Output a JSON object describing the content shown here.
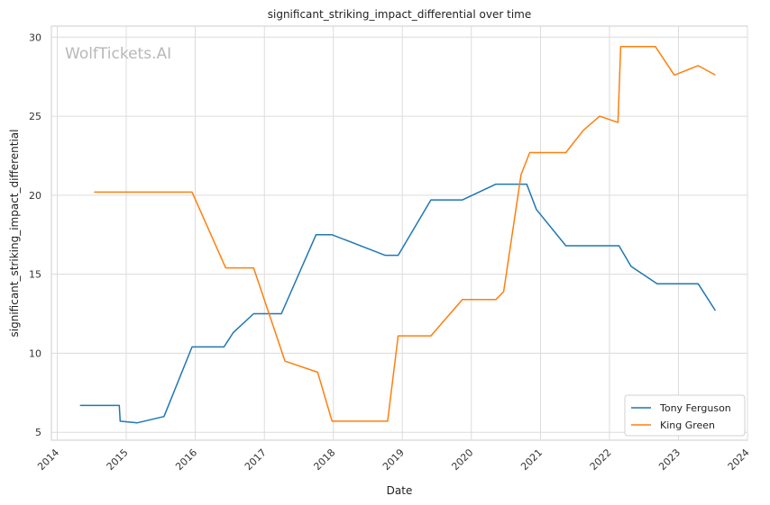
{
  "chart_data": {
    "type": "line",
    "title": "significant_striking_impact_differential over time",
    "xlabel": "Date",
    "ylabel": "significant_striking_impact_differential",
    "watermark": "WolfTickets.AI",
    "x_ticks": [
      "2014",
      "2015",
      "2016",
      "2017",
      "2018",
      "2019",
      "2020",
      "2021",
      "2022",
      "2023",
      "2024"
    ],
    "y_ticks": [
      5,
      10,
      15,
      20,
      25,
      30
    ],
    "xlim": [
      "2013-12-01",
      "2024-01-01"
    ],
    "ylim": [
      4.5,
      30.7
    ],
    "grid": true,
    "legend": "lower-right",
    "series": [
      {
        "name": "Tony Ferguson",
        "color": "#1f77b4",
        "points": [
          [
            "2014-05-01",
            6.7
          ],
          [
            "2014-11-25",
            6.7
          ],
          [
            "2014-11-30",
            5.7
          ],
          [
            "2015-03-01",
            5.6
          ],
          [
            "2015-07-20",
            6.0
          ],
          [
            "2015-12-15",
            10.4
          ],
          [
            "2016-06-01",
            10.4
          ],
          [
            "2016-07-20",
            11.3
          ],
          [
            "2016-11-05",
            12.5
          ],
          [
            "2017-04-01",
            12.5
          ],
          [
            "2017-10-01",
            17.5
          ],
          [
            "2017-12-25",
            17.5
          ],
          [
            "2018-10-01",
            16.2
          ],
          [
            "2018-12-10",
            16.2
          ],
          [
            "2019-06-01",
            19.7
          ],
          [
            "2019-11-15",
            19.7
          ],
          [
            "2020-05-10",
            20.7
          ],
          [
            "2020-10-20",
            20.7
          ],
          [
            "2020-12-10",
            19.1
          ],
          [
            "2021-05-15",
            16.8
          ],
          [
            "2022-02-20",
            16.8
          ],
          [
            "2022-04-25",
            15.5
          ],
          [
            "2022-09-10",
            14.4
          ],
          [
            "2023-04-15",
            14.4
          ],
          [
            "2023-07-15",
            12.7
          ]
        ]
      },
      {
        "name": "King Green",
        "color": "#ff7f0e",
        "points": [
          [
            "2014-07-15",
            20.2
          ],
          [
            "2015-12-15",
            20.2
          ],
          [
            "2016-06-10",
            15.4
          ],
          [
            "2016-11-05",
            15.4
          ],
          [
            "2017-04-20",
            9.5
          ],
          [
            "2017-10-10",
            8.8
          ],
          [
            "2017-12-25",
            5.7
          ],
          [
            "2018-10-15",
            5.7
          ],
          [
            "2018-12-10",
            11.1
          ],
          [
            "2019-06-01",
            11.1
          ],
          [
            "2019-11-15",
            13.4
          ],
          [
            "2020-05-10",
            13.4
          ],
          [
            "2020-06-20",
            13.9
          ],
          [
            "2020-08-10",
            18.0
          ],
          [
            "2020-09-20",
            21.3
          ],
          [
            "2020-11-05",
            22.7
          ],
          [
            "2021-05-15",
            22.7
          ],
          [
            "2021-08-15",
            24.1
          ],
          [
            "2021-11-10",
            25.0
          ],
          [
            "2022-02-15",
            24.6
          ],
          [
            "2022-03-01",
            29.4
          ],
          [
            "2022-09-01",
            29.4
          ],
          [
            "2022-12-10",
            27.6
          ],
          [
            "2023-04-15",
            28.2
          ],
          [
            "2023-07-15",
            27.6
          ]
        ]
      }
    ]
  }
}
